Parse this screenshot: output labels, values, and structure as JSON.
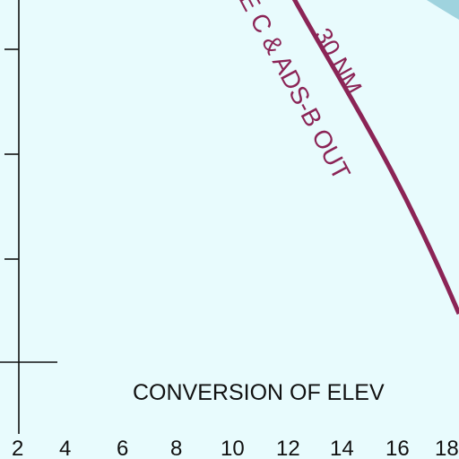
{
  "map": {
    "corner_region_color": "#9fd3de",
    "background_color": "#e8fbfd",
    "curve_color": "#8b2456",
    "curve_label_range": "30 NM",
    "curve_label_requirement": "E C & ADS-B OUT",
    "section_title": "CONVERSION OF ELEV",
    "axis_ticks": [
      "2",
      "4",
      "6",
      "8",
      "10",
      "12",
      "14",
      "16",
      "18"
    ]
  }
}
